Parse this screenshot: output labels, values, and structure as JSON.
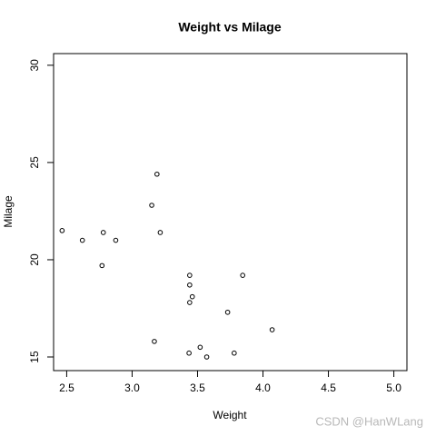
{
  "chart_data": {
    "type": "scatter",
    "title": "Weight vs Milage",
    "xlabel": "Weight",
    "ylabel": "Milage",
    "x": [
      2.465,
      2.62,
      2.78,
      2.875,
      2.77,
      3.15,
      3.19,
      3.215,
      3.44,
      3.44,
      3.46,
      3.44,
      3.845,
      3.73,
      4.07,
      3.17,
      3.435,
      3.52,
      3.57,
      3.78
    ],
    "y": [
      21.5,
      21.0,
      21.4,
      21.0,
      19.7,
      22.8,
      24.4,
      21.4,
      19.2,
      18.7,
      18.1,
      17.8,
      19.2,
      17.3,
      16.4,
      15.8,
      15.2,
      15.5,
      15.0,
      15.2
    ],
    "color": "#000000",
    "xlim": [
      2.4,
      5.1
    ],
    "ylim": [
      14.3,
      30.6
    ],
    "xticks": [
      2.5,
      {
        "value": 3.0,
        "label": "3.0"
      },
      3.5,
      {
        "value": 4.0,
        "label": "4.0"
      },
      4.5,
      {
        "value": 5.0,
        "label": "5.0"
      }
    ],
    "yticks": [
      15,
      20,
      25,
      30
    ]
  },
  "watermark": "CSDN @HanWLang"
}
